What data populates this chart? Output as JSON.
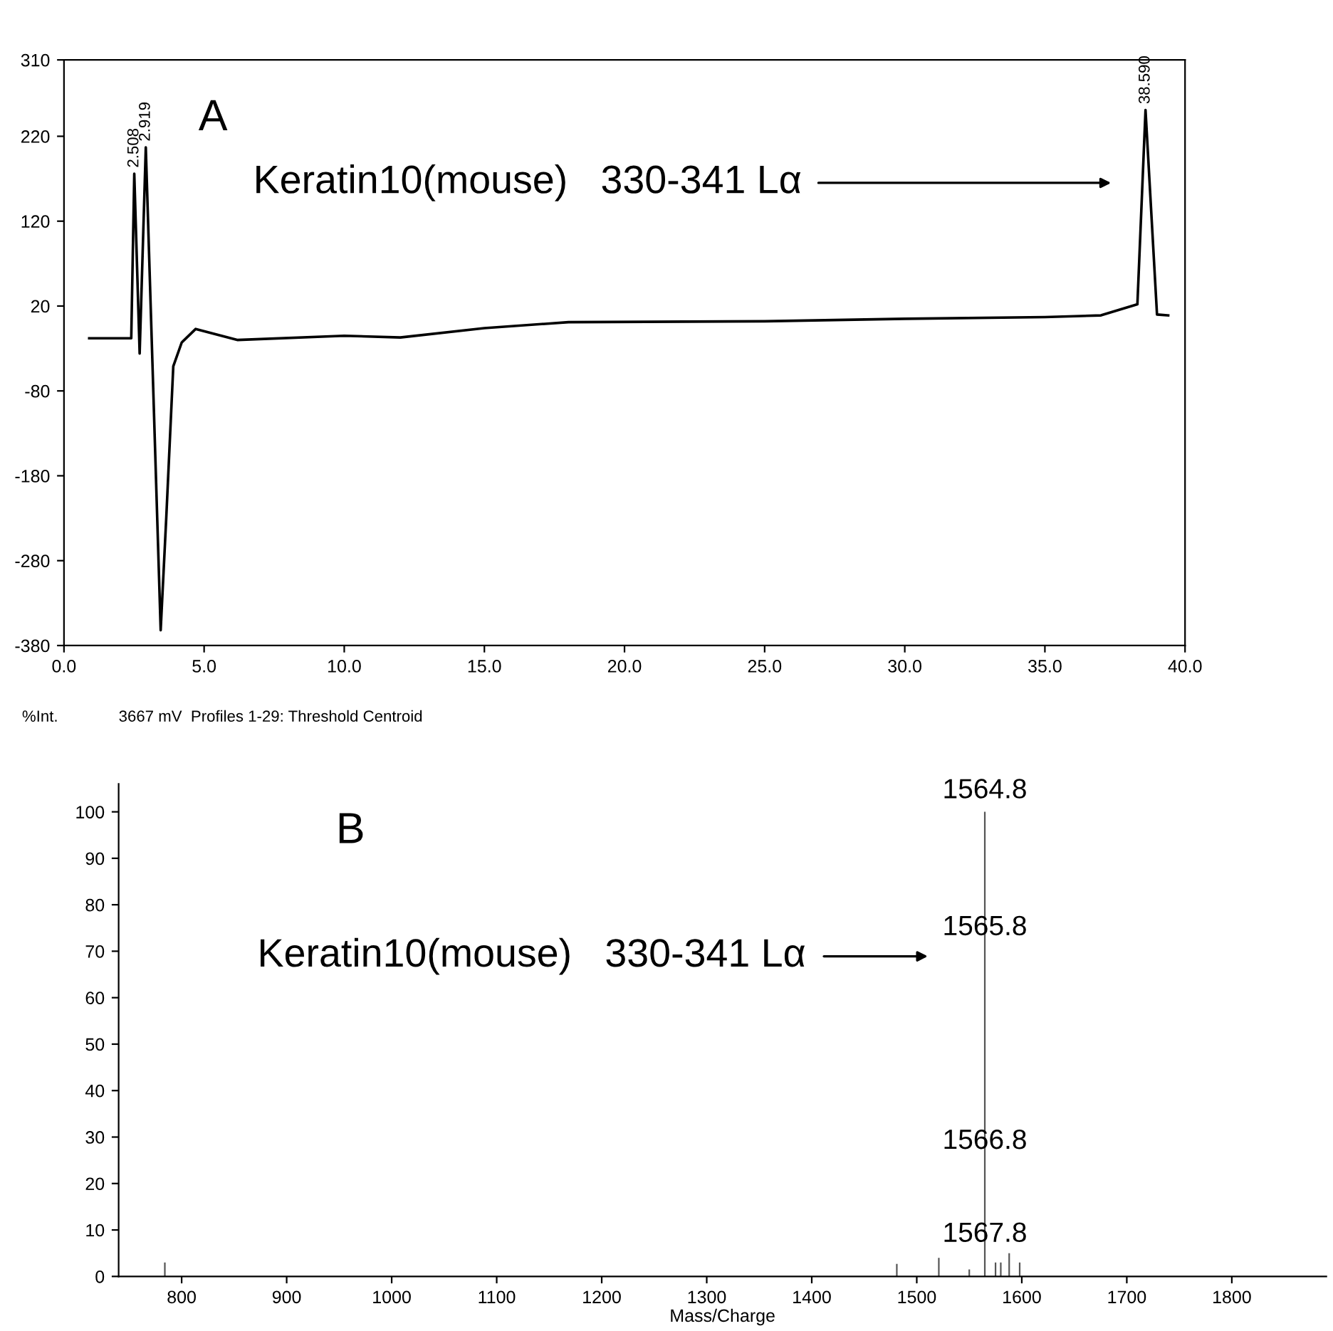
{
  "chart_data": [
    {
      "type": "line",
      "x": [
        0.9,
        2.4,
        2.508,
        2.7,
        2.919,
        3.45,
        3.65,
        3.9,
        4.2,
        4.7,
        6.2,
        10,
        12,
        15,
        18,
        25,
        30,
        35,
        37,
        38.3,
        38.59,
        39.0,
        39.4
      ],
      "values": [
        -18,
        -18,
        176,
        -36,
        207,
        -362,
        -229,
        -51,
        -23,
        -7,
        -20,
        -15,
        -17,
        -6,
        1,
        2,
        5,
        7,
        9,
        22,
        251,
        10,
        9
      ],
      "color": "#000000",
      "xlim": [
        0,
        40
      ],
      "ylim": [
        -380,
        310
      ],
      "xticks": [
        {
          "value": 0,
          "label": "0.0"
        },
        {
          "value": 5,
          "label": "5.0"
        },
        {
          "value": 10,
          "label": "10.0"
        },
        {
          "value": 15,
          "label": "15.0"
        },
        {
          "value": 20,
          "label": "20.0"
        },
        {
          "value": 25,
          "label": "25.0"
        },
        {
          "value": 30,
          "label": "30.0"
        },
        {
          "value": 35,
          "label": "35.0"
        },
        {
          "value": 40,
          "label": "40.0"
        }
      ],
      "yticks": [
        -380,
        -280,
        -180,
        -80,
        20,
        120,
        220,
        310
      ],
      "grid": false,
      "marker": "none",
      "line_style": "solid",
      "annotations": [
        "A",
        "Keratin10(mouse)   330-341 Lα",
        {
          "text": "2.508",
          "x": 2.508,
          "y": 176
        },
        {
          "text": "2.919",
          "x": 2.919,
          "y": 207
        },
        {
          "text": "38.590",
          "x": 38.59,
          "y": 251
        }
      ]
    },
    {
      "type": "bar",
      "subtitle": "3667 mV  Profiles 1-29: Threshold Centroid",
      "ylabel": "%Int.",
      "xlabel": "Mass/Charge",
      "x": [
        784,
        1481,
        1521,
        1550,
        1564.8,
        1575,
        1580,
        1588,
        1598
      ],
      "values": [
        3,
        2.7,
        4,
        1.5,
        100,
        3,
        3,
        5,
        3
      ],
      "color": "#555555",
      "xlim": [
        740,
        1890
      ],
      "ylim": [
        0,
        106
      ],
      "xticks": [
        800,
        900,
        1000,
        1100,
        1200,
        1300,
        1400,
        1500,
        1600,
        1700,
        1800
      ],
      "yticks": [
        0,
        10,
        20,
        30,
        40,
        50,
        60,
        70,
        80,
        90,
        100
      ],
      "grid": false,
      "annotations": [
        "B",
        "Keratin10(mouse)   330-341 Lα",
        {
          "text": "1564.8",
          "x": 1564.8,
          "y": 100
        },
        {
          "text": "1565.8",
          "x": 1564.8,
          "y": 75
        },
        {
          "text": "1566.8",
          "x": 1564.8,
          "y": 29
        },
        {
          "text": "1567.8",
          "x": 1564.8,
          "y": 9
        }
      ]
    }
  ]
}
